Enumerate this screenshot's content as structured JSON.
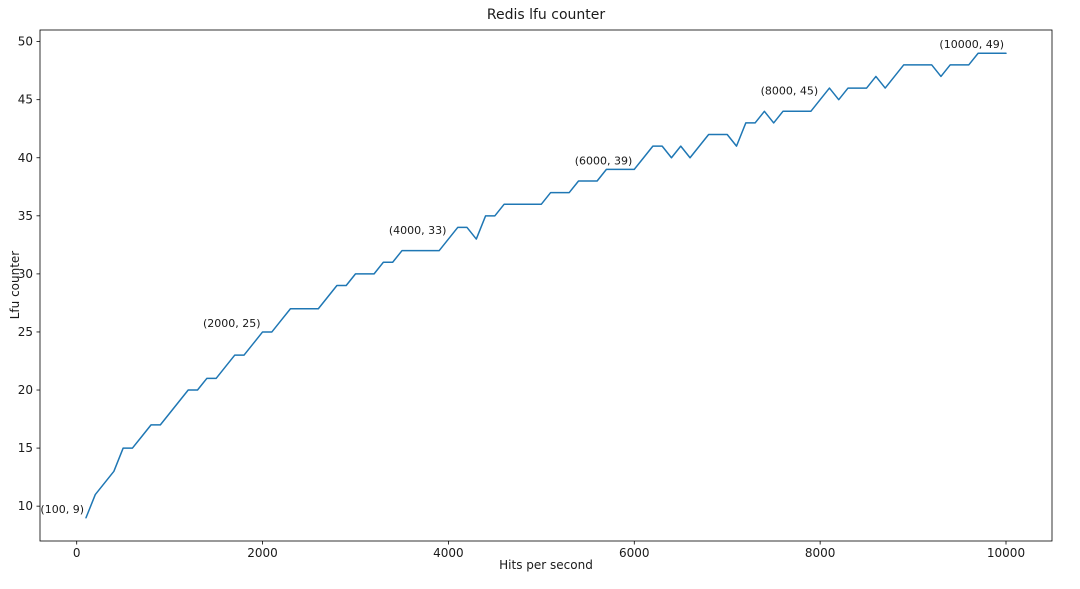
{
  "chart_data": {
    "type": "line",
    "title": "Redis lfu counter",
    "xlabel": "Hits per second",
    "ylabel": "Lfu counter",
    "x": [
      100,
      200,
      300,
      400,
      500,
      600,
      700,
      800,
      900,
      1000,
      1100,
      1200,
      1300,
      1400,
      1500,
      1600,
      1700,
      1800,
      1900,
      2000,
      2100,
      2200,
      2300,
      2400,
      2500,
      2600,
      2700,
      2800,
      2900,
      3000,
      3100,
      3200,
      3300,
      3400,
      3500,
      3600,
      3700,
      3800,
      3900,
      4000,
      4100,
      4200,
      4300,
      4400,
      4500,
      4600,
      4700,
      4800,
      4900,
      5000,
      5100,
      5200,
      5300,
      5400,
      5500,
      5600,
      5700,
      5800,
      5900,
      6000,
      6100,
      6200,
      6300,
      6400,
      6500,
      6600,
      6700,
      6800,
      6900,
      7000,
      7100,
      7200,
      7300,
      7400,
      7500,
      7600,
      7700,
      7800,
      7900,
      8000,
      8100,
      8200,
      8300,
      8400,
      8500,
      8600,
      8700,
      8800,
      8900,
      9000,
      9100,
      9200,
      9300,
      9400,
      9500,
      9600,
      9700,
      9800,
      9900,
      10000
    ],
    "y": [
      9,
      11,
      12,
      13,
      15,
      15,
      16,
      17,
      17,
      18,
      19,
      20,
      20,
      21,
      21,
      22,
      23,
      23,
      24,
      25,
      25,
      26,
      27,
      27,
      27,
      27,
      28,
      29,
      29,
      30,
      30,
      30,
      31,
      31,
      32,
      32,
      32,
      32,
      32,
      33,
      34,
      34,
      33,
      35,
      35,
      36,
      36,
      36,
      36,
      36,
      37,
      37,
      37,
      38,
      38,
      38,
      39,
      39,
      39,
      39,
      40,
      41,
      41,
      40,
      41,
      40,
      41,
      42,
      42,
      42,
      41,
      43,
      43,
      44,
      43,
      44,
      44,
      44,
      44,
      45,
      46,
      45,
      46,
      46,
      46,
      47,
      46,
      47,
      48,
      48,
      48,
      48,
      47,
      48,
      48,
      48,
      49,
      49,
      49,
      49
    ],
    "xlim": [
      -395,
      10495
    ],
    "ylim": [
      7,
      51
    ],
    "xticks": [
      0,
      2000,
      4000,
      6000,
      8000,
      10000
    ],
    "yticks": [
      10,
      15,
      20,
      25,
      30,
      35,
      40,
      45,
      50
    ],
    "grid": false,
    "legend": null,
    "line_color": "#1f77b4",
    "spine_color": "#000000",
    "tick_label_color": "#1a1a1a",
    "annotations": [
      {
        "x": 100,
        "y": 9,
        "label": "(100, 9)"
      },
      {
        "x": 2000,
        "y": 25,
        "label": "(2000, 25)"
      },
      {
        "x": 4000,
        "y": 33,
        "label": "(4000, 33)"
      },
      {
        "x": 6000,
        "y": 39,
        "label": "(6000, 39)"
      },
      {
        "x": 8000,
        "y": 45,
        "label": "(8000, 45)"
      },
      {
        "x": 10000,
        "y": 49,
        "label": "(10000, 49)"
      }
    ]
  }
}
